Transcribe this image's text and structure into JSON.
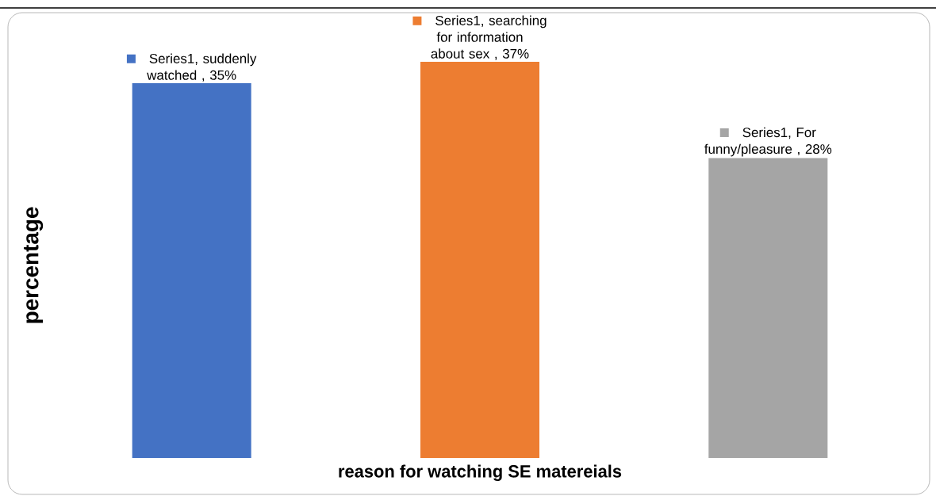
{
  "chart_data": {
    "type": "bar",
    "xlabel": "reason for watching SE matereials",
    "ylabel": "percentage",
    "categories": [
      null,
      null,
      null
    ],
    "values": [
      35,
      37,
      28
    ],
    "colors": [
      "#4472c4",
      "#ed7d31",
      "#a5a5a5"
    ],
    "value_labels": [
      "Series1, suddenly watched , 35%",
      "Series1, searching for information about sex , 37%",
      "Series1, For funny/pleasure , 28%"
    ]
  }
}
